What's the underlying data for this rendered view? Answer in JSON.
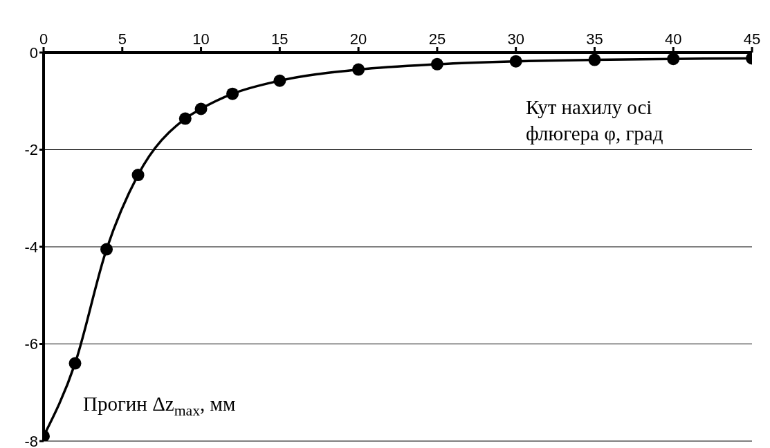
{
  "chart_data": {
    "type": "line",
    "xlabel": "Кут нахилу осі флюгера φ, град",
    "ylabel": "Прогин Δz$_{max}$, мм",
    "x": [
      0,
      2,
      4,
      6,
      9,
      10,
      12,
      15,
      20,
      25,
      30,
      35,
      40,
      45
    ],
    "series": [
      {
        "color": "#000000",
        "values": [
          -7.9,
          -6.4,
          -4.05,
          -2.52,
          -1.36,
          -1.16,
          -0.85,
          -0.58,
          -0.35,
          -0.24,
          -0.18,
          -0.15,
          -0.13,
          -0.12
        ]
      }
    ],
    "xlim": [
      0,
      45
    ],
    "xticks": [
      0,
      5,
      10,
      15,
      20,
      25,
      30,
      35,
      40,
      45
    ],
    "ylim": [
      -8,
      0
    ],
    "yticks": [
      -8,
      -6,
      -4,
      -2,
      0
    ],
    "grid": "y",
    "legend": false,
    "marker": "circle",
    "line_style": "solid"
  }
}
